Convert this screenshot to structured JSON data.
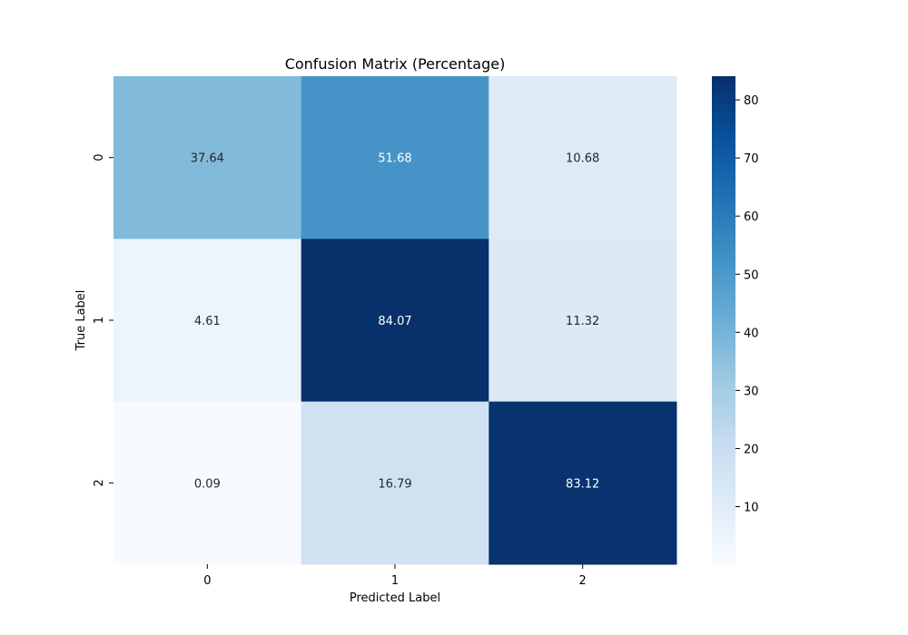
{
  "chart_data": {
    "type": "heatmap",
    "title": "Confusion Matrix (Percentage)",
    "xlabel": "Predicted Label",
    "ylabel": "True Label",
    "x_categories": [
      "0",
      "1",
      "2"
    ],
    "y_categories": [
      "0",
      "1",
      "2"
    ],
    "values": [
      [
        37.64,
        51.68,
        10.68
      ],
      [
        4.61,
        84.07,
        11.32
      ],
      [
        0.09,
        16.79,
        83.12
      ]
    ],
    "cell_labels": [
      [
        "37.64",
        "51.68",
        "10.68"
      ],
      [
        "4.61",
        "84.07",
        "11.32"
      ],
      [
        "0.09",
        "16.79",
        "83.12"
      ]
    ],
    "colormap": "Blues",
    "colorbar": {
      "range": [
        0.09,
        84.07
      ],
      "ticks": [
        10,
        20,
        30,
        40,
        50,
        60,
        70,
        80
      ],
      "tick_labels": [
        "10",
        "20",
        "30",
        "40",
        "50",
        "60",
        "70",
        "80"
      ]
    }
  }
}
